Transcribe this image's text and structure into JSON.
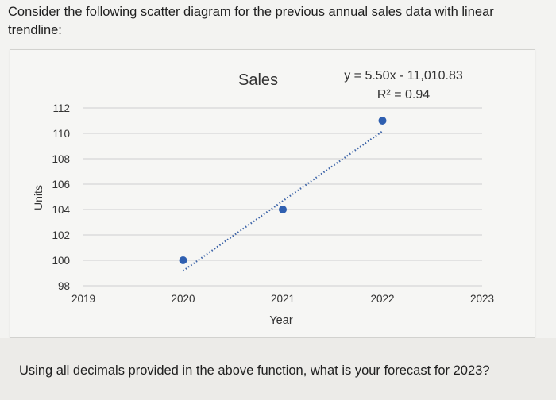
{
  "question": {
    "text": "Consider the following scatter diagram for the previous annual sales data with linear trendline:"
  },
  "footer": {
    "text": "Using all decimals provided in the above function, what is your forecast for 2023?"
  },
  "chart_data": {
    "type": "scatter",
    "title": "Sales",
    "xlabel": "Year",
    "ylabel": "Units",
    "x_ticks": [
      2019,
      2020,
      2021,
      2022,
      2023
    ],
    "y_ticks": [
      98,
      100,
      102,
      104,
      106,
      108,
      110,
      112
    ],
    "xlim": [
      2019,
      2023
    ],
    "ylim": [
      98,
      112
    ],
    "grid": "horizontal",
    "points": [
      {
        "x": 2020,
        "y": 100
      },
      {
        "x": 2021,
        "y": 104
      },
      {
        "x": 2022,
        "y": 111
      }
    ],
    "trendline": {
      "type": "linear",
      "slope": 5.5,
      "intercept": -11010.83,
      "x_range": [
        2020,
        2022
      ],
      "style": "dotted"
    },
    "equation_label": "y = 5.50x - 11,010.83",
    "r2_label": "R² = 0.94",
    "colors": {
      "point": "#2f5fb0",
      "trendline": "#3d64a8",
      "grid": "#d6d6d6"
    }
  }
}
